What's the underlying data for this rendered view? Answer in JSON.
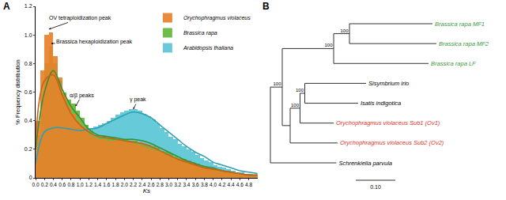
{
  "chart_data": {
    "type": "histogram",
    "panel_label": "A",
    "x_label": "Ks",
    "y_label": "% Frequency distribution",
    "xlim": [
      0,
      5
    ],
    "ylim": [
      0,
      1.2
    ],
    "xticks": [
      {
        "value": 0,
        "label": "0.0"
      },
      0.2,
      0.4,
      0.6,
      0.8,
      {
        "value": 1,
        "label": "1.0"
      },
      1.2,
      1.4,
      1.6,
      1.8,
      {
        "value": 2,
        "label": "2.0"
      },
      2.2,
      2.4,
      2.6,
      2.8,
      {
        "value": 3,
        "label": "3.0"
      },
      3.2,
      3.4,
      3.6,
      3.8,
      {
        "value": 4,
        "label": "4.0"
      },
      4.2,
      4.4,
      4.6,
      4.8
    ],
    "yticks": [
      0,
      0.2,
      0.4,
      0.6,
      0.8,
      {
        "value": 1,
        "label": "1.0"
      },
      1.2
    ],
    "grid": false,
    "legend": "top right",
    "bins": [
      0,
      0.1,
      0.2,
      0.3,
      0.4,
      0.5,
      0.6,
      0.7,
      0.8,
      0.9,
      1.0,
      1.1,
      1.2,
      1.3,
      1.4,
      1.5,
      1.6,
      1.7,
      1.8,
      1.9,
      2.0,
      2.1,
      2.2,
      2.3,
      2.4,
      2.5,
      2.6,
      2.7,
      2.8,
      2.9,
      3.0,
      3.1,
      3.2,
      3.3,
      3.4,
      3.5,
      3.6,
      3.7,
      3.8,
      3.9,
      4.0,
      4.1,
      4.2,
      4.3,
      4.4,
      4.5,
      4.6,
      4.7,
      4.8,
      4.9,
      5.0
    ],
    "series": [
      {
        "name": "Orychophragmus violaceus",
        "color": "#e8822a",
        "values": [
          0.4,
          0.75,
          1.0,
          1.02,
          0.85,
          0.7,
          0.58,
          0.5,
          0.45,
          0.4,
          0.36,
          0.33,
          0.3,
          0.28,
          0.27,
          0.27,
          0.26,
          0.26,
          0.26,
          0.26,
          0.25,
          0.25,
          0.24,
          0.23,
          0.22,
          0.21,
          0.2,
          0.19,
          0.18,
          0.16,
          0.15,
          0.14,
          0.13,
          0.12,
          0.11,
          0.1,
          0.09,
          0.08,
          0.07,
          0.06,
          0.06,
          0.05,
          0.05,
          0.04,
          0.04,
          0.03,
          0.03,
          0.03,
          0.02,
          0.02
        ]
      },
      {
        "name": "Brassica rapa",
        "color": "#62b83c",
        "values": [
          0.3,
          0.55,
          0.8,
          0.92,
          0.8,
          0.68,
          0.6,
          0.55,
          0.52,
          0.47,
          0.42,
          0.37,
          0.33,
          0.3,
          0.29,
          0.28,
          0.28,
          0.28,
          0.27,
          0.27,
          0.27,
          0.26,
          0.26,
          0.25,
          0.24,
          0.23,
          0.22,
          0.21,
          0.19,
          0.18,
          0.17,
          0.15,
          0.14,
          0.13,
          0.12,
          0.11,
          0.1,
          0.09,
          0.08,
          0.07,
          0.06,
          0.06,
          0.05,
          0.05,
          0.04,
          0.04,
          0.03,
          0.03,
          0.02,
          0.02
        ]
      },
      {
        "name": "Arabidopsis thaliana",
        "color": "#5cc6d6",
        "values": [
          0.12,
          0.28,
          0.34,
          0.36,
          0.37,
          0.37,
          0.37,
          0.36,
          0.36,
          0.36,
          0.35,
          0.35,
          0.35,
          0.36,
          0.37,
          0.38,
          0.4,
          0.42,
          0.44,
          0.46,
          0.47,
          0.48,
          0.48,
          0.47,
          0.45,
          0.43,
          0.41,
          0.38,
          0.35,
          0.32,
          0.29,
          0.27,
          0.24,
          0.22,
          0.2,
          0.18,
          0.16,
          0.14,
          0.12,
          0.11,
          0.09,
          0.08,
          0.07,
          0.06,
          0.05,
          0.04,
          0.04,
          0.03,
          0.03,
          0.02
        ]
      }
    ],
    "curves": {
      "x": [
        0,
        0.2,
        0.4,
        0.6,
        0.8,
        1.0,
        1.2,
        1.4,
        1.6,
        1.8,
        2.0,
        2.2,
        2.4,
        2.6,
        2.8,
        3.0,
        3.2,
        3.4,
        3.6,
        3.8,
        4.0,
        4.2,
        4.4,
        4.6,
        4.8,
        5.0
      ],
      "series": [
        {
          "name": "Orychophragmus violaceus",
          "color": "#c9611a",
          "values": [
            0.25,
            0.68,
            0.72,
            0.58,
            0.45,
            0.37,
            0.32,
            0.29,
            0.28,
            0.27,
            0.26,
            0.25,
            0.24,
            0.22,
            0.19,
            0.16,
            0.13,
            0.11,
            0.09,
            0.07,
            0.06,
            0.05,
            0.04,
            0.03,
            0.02,
            0.02
          ]
        },
        {
          "name": "Brassica rapa",
          "color": "#3a8f32",
          "values": [
            0.2,
            0.6,
            0.75,
            0.62,
            0.5,
            0.42,
            0.34,
            0.3,
            0.29,
            0.28,
            0.27,
            0.27,
            0.26,
            0.24,
            0.21,
            0.18,
            0.15,
            0.12,
            0.1,
            0.08,
            0.07,
            0.05,
            0.04,
            0.03,
            0.02,
            0.02
          ]
        },
        {
          "name": "Arabidopsis thaliana",
          "color": "#2f9fb3",
          "values": [
            0.1,
            0.32,
            0.35,
            0.35,
            0.34,
            0.33,
            0.34,
            0.35,
            0.38,
            0.41,
            0.44,
            0.46,
            0.45,
            0.42,
            0.37,
            0.32,
            0.27,
            0.22,
            0.18,
            0.15,
            0.11,
            0.09,
            0.07,
            0.05,
            0.04,
            0.03
          ]
        }
      ]
    },
    "annotations": [
      {
        "text": "OV tetraploidization peak",
        "x": 0.3,
        "y": 1.04
      },
      {
        "text": "Brassica hexaploidization peak",
        "x": 0.35,
        "y": 0.94
      },
      {
        "text": "α/β peaks",
        "x": 0.9,
        "y": 0.5
      },
      {
        "text": "γ peak",
        "x": 2.2,
        "y": 0.48
      }
    ]
  },
  "tree": {
    "panel_label": "B",
    "scale_bar": {
      "value": 0.1,
      "label": "0.10"
    },
    "root": {
      "children": [
        {
          "length": 0.03,
          "support": 100,
          "children": [
            {
              "length": 0.13,
              "support": 100,
              "children": [
                {
                  "length": 0.04,
                  "support": 100,
                  "children": [
                    {
                      "label": "Brassica rapa MF1",
                      "length": 0.21,
                      "color": "#3a9a3a"
                    },
                    {
                      "label": "Brassica rapa MF2",
                      "length": 0.22,
                      "color": "#3a9a3a"
                    }
                  ]
                },
                {
                  "label": "Brassica rapa LF",
                  "length": 0.24,
                  "color": "#3a9a3a"
                }
              ]
            },
            {
              "length": 0.02,
              "children": [
                {
                  "length": 0.025,
                  "support": 100,
                  "children": [
                    {
                      "length": 0.012,
                      "support": 100,
                      "children": [
                        {
                          "label": "Sisymbrium irio",
                          "length": 0.155,
                          "color": "#000000"
                        },
                        {
                          "label": "Isatis indigotica",
                          "length": 0.135,
                          "color": "#000000"
                        }
                      ]
                    },
                    {
                      "label": "Orychophragmus violaceus Sub1 (Ov1)",
                      "length": 0.085,
                      "color": "#e0312b"
                    }
                  ]
                },
                {
                  "label": "Orychophragmus violaceus Sub2 (Ov2)",
                  "length": 0.12,
                  "color": "#e0312b"
                }
              ]
            }
          ]
        },
        {
          "label": "Schrenkiella parvula",
          "length": 0.167,
          "color": "#000000"
        }
      ]
    }
  }
}
